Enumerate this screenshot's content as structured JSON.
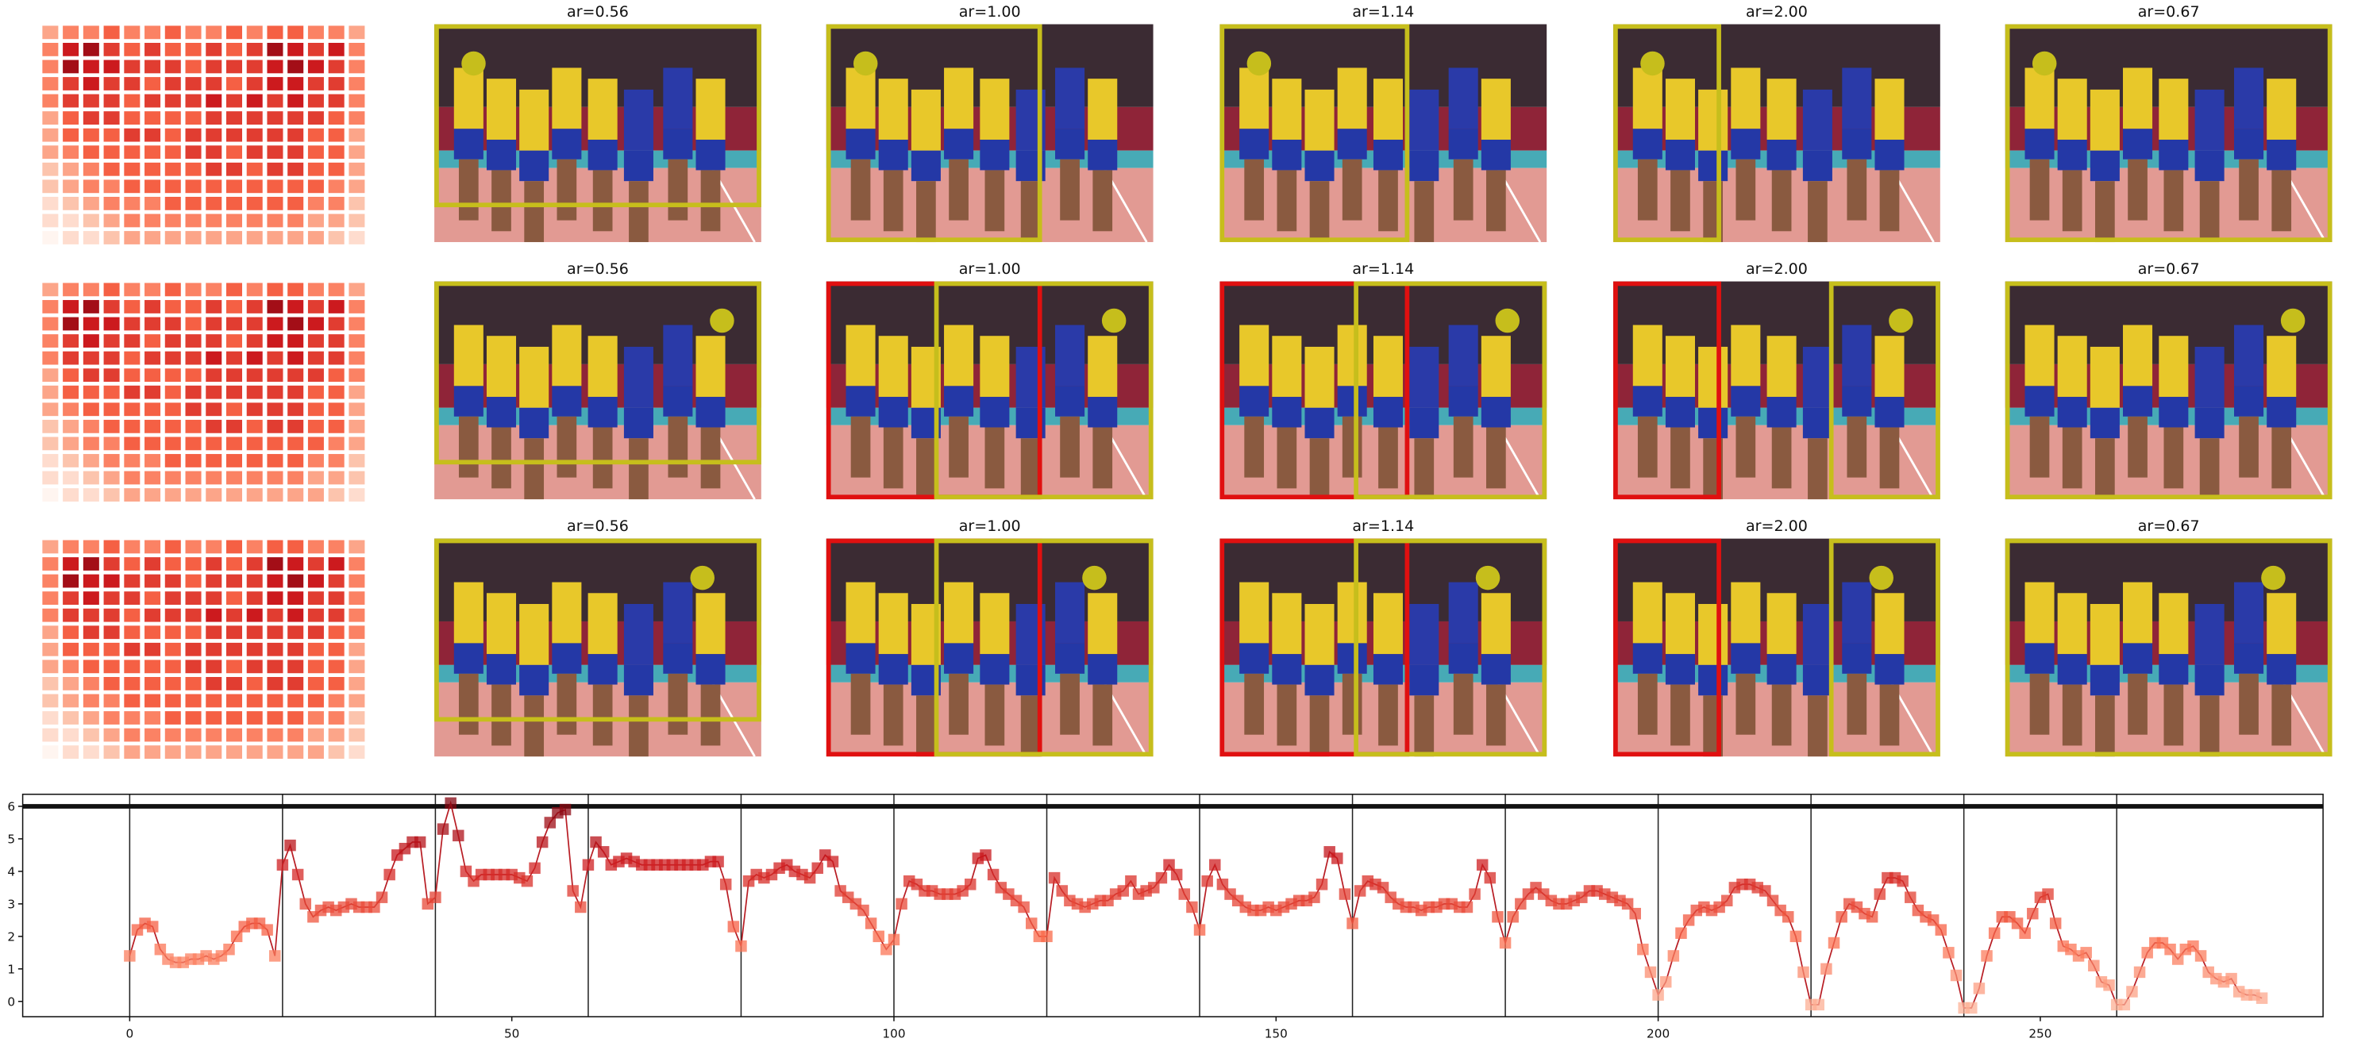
{
  "heatmap": {
    "values": [
      [
        3,
        4,
        4,
        5,
        4,
        4,
        5,
        4,
        4,
        5,
        4,
        5,
        5,
        4,
        4,
        3
      ],
      [
        4,
        7,
        8,
        6,
        5,
        6,
        5,
        5,
        6,
        5,
        6,
        8,
        7,
        6,
        7,
        4
      ],
      [
        4,
        8,
        7,
        7,
        6,
        6,
        6,
        5,
        6,
        6,
        6,
        7,
        8,
        7,
        6,
        4
      ],
      [
        4,
        6,
        7,
        6,
        6,
        5,
        6,
        6,
        6,
        5,
        6,
        7,
        7,
        6,
        6,
        4
      ],
      [
        4,
        6,
        6,
        6,
        5,
        6,
        6,
        6,
        7,
        6,
        7,
        6,
        7,
        6,
        6,
        4
      ],
      [
        3,
        5,
        6,
        6,
        5,
        5,
        5,
        5,
        6,
        6,
        6,
        6,
        6,
        6,
        5,
        4
      ],
      [
        3,
        5,
        5,
        5,
        6,
        6,
        5,
        6,
        6,
        6,
        6,
        6,
        6,
        5,
        5,
        3
      ],
      [
        3,
        4,
        5,
        5,
        5,
        5,
        5,
        6,
        6,
        5,
        6,
        6,
        6,
        5,
        5,
        3
      ],
      [
        2,
        3,
        4,
        5,
        5,
        5,
        5,
        5,
        6,
        6,
        5,
        6,
        6,
        5,
        5,
        3
      ],
      [
        2,
        3,
        4,
        4,
        5,
        5,
        5,
        5,
        5,
        5,
        5,
        5,
        5,
        5,
        4,
        3
      ],
      [
        1,
        2,
        3,
        4,
        4,
        4,
        5,
        5,
        5,
        5,
        5,
        5,
        5,
        4,
        4,
        2
      ],
      [
        1,
        1,
        2,
        3,
        4,
        4,
        4,
        4,
        4,
        4,
        4,
        4,
        4,
        3,
        3,
        2
      ],
      [
        0,
        1,
        1,
        2,
        3,
        3,
        3,
        3,
        3,
        3,
        3,
        3,
        3,
        3,
        2,
        1
      ]
    ]
  },
  "panel_rows": [
    {
      "titles": [
        "ar=0.56",
        "ar=1.00",
        "ar=1.14",
        "ar=2.00",
        "ar=0.67"
      ]
    },
    {
      "titles": [
        "ar=0.56",
        "ar=1.00",
        "ar=1.14",
        "ar=2.00",
        "ar=0.67"
      ]
    },
    {
      "titles": [
        "ar=0.56",
        "ar=1.00",
        "ar=1.14",
        "ar=2.00",
        "ar=0.67"
      ]
    }
  ],
  "chart_data": {
    "type": "line",
    "color": "#b81d24",
    "xlim": [
      -14,
      287
    ],
    "ylim": [
      -0.47,
      6.37
    ],
    "xticks": [
      0,
      50,
      100,
      150,
      200,
      250
    ],
    "yticks": [
      0,
      1,
      2,
      3,
      4,
      5,
      6
    ],
    "vlines": [
      0,
      20,
      40,
      60,
      80,
      100,
      120,
      140,
      160,
      180,
      200,
      220,
      240,
      260
    ],
    "hline": 6,
    "x": [
      0,
      1,
      2,
      3,
      4,
      5,
      6,
      7,
      8,
      9,
      10,
      11,
      12,
      13,
      14,
      15,
      16,
      17,
      18,
      19,
      20,
      21,
      22,
      23,
      24,
      25,
      26,
      27,
      28,
      29,
      30,
      31,
      32,
      33,
      34,
      35,
      36,
      37,
      38,
      39,
      40,
      41,
      42,
      43,
      44,
      45,
      46,
      47,
      48,
      49,
      50,
      51,
      52,
      53,
      54,
      55,
      56,
      57,
      58,
      59,
      60,
      61,
      62,
      63,
      64,
      65,
      66,
      67,
      68,
      69,
      70,
      71,
      72,
      73,
      74,
      75,
      76,
      77,
      78,
      79,
      80,
      81,
      82,
      83,
      84,
      85,
      86,
      87,
      88,
      89,
      90,
      91,
      92,
      93,
      94,
      95,
      96,
      97,
      98,
      99,
      100,
      101,
      102,
      103,
      104,
      105,
      106,
      107,
      108,
      109,
      110,
      111,
      112,
      113,
      114,
      115,
      116,
      117,
      118,
      119,
      120,
      121,
      122,
      123,
      124,
      125,
      126,
      127,
      128,
      129,
      130,
      131,
      132,
      133,
      134,
      135,
      136,
      137,
      138,
      139,
      140,
      141,
      142,
      143,
      144,
      145,
      146,
      147,
      148,
      149,
      150,
      151,
      152,
      153,
      154,
      155,
      156,
      157,
      158,
      159,
      160,
      161,
      162,
      163,
      164,
      165,
      166,
      167,
      168,
      169,
      170,
      171,
      172,
      173,
      174,
      175,
      176,
      177,
      178,
      179,
      180,
      181,
      182,
      183,
      184,
      185,
      186,
      187,
      188,
      189,
      190,
      191,
      192,
      193,
      194,
      195,
      196,
      197,
      198,
      199,
      200,
      201,
      202,
      203,
      204,
      205,
      206,
      207,
      208,
      209,
      210,
      211,
      212,
      213,
      214,
      215,
      216,
      217,
      218,
      219,
      220,
      221,
      222,
      223,
      224,
      225,
      226,
      227,
      228,
      229,
      230,
      231,
      232,
      233,
      234,
      235,
      236,
      237,
      238,
      239,
      240,
      241,
      242,
      243,
      244,
      245,
      246,
      247,
      248,
      249,
      250,
      251,
      252,
      253,
      254,
      255,
      256,
      257,
      258,
      259,
      260,
      261,
      262,
      263,
      264,
      265,
      266,
      267,
      268,
      269,
      270,
      271,
      272,
      273,
      274,
      275,
      276,
      277,
      278,
      279
    ],
    "values": [
      1.4,
      2.2,
      2.4,
      2.3,
      1.6,
      1.3,
      1.2,
      1.2,
      1.3,
      1.3,
      1.4,
      1.3,
      1.4,
      1.6,
      2.0,
      2.3,
      2.4,
      2.4,
      2.2,
      1.4,
      4.2,
      4.8,
      3.9,
      3.0,
      2.6,
      2.8,
      2.9,
      2.8,
      2.9,
      3.0,
      2.9,
      2.9,
      2.9,
      3.2,
      3.9,
      4.5,
      4.7,
      4.9,
      4.9,
      3.0,
      3.2,
      5.3,
      6.1,
      5.1,
      4.0,
      3.7,
      3.9,
      3.9,
      3.9,
      3.9,
      3.9,
      3.8,
      3.7,
      4.1,
      4.9,
      5.5,
      5.8,
      5.9,
      3.4,
      2.9,
      4.2,
      4.9,
      4.6,
      4.2,
      4.3,
      4.4,
      4.3,
      4.2,
      4.2,
      4.2,
      4.2,
      4.2,
      4.2,
      4.2,
      4.2,
      4.2,
      4.3,
      4.3,
      3.6,
      2.3,
      1.7,
      3.7,
      3.9,
      3.8,
      3.9,
      4.1,
      4.2,
      4.0,
      3.9,
      3.8,
      4.1,
      4.5,
      4.3,
      3.4,
      3.2,
      3.0,
      2.8,
      2.4,
      2.0,
      1.6,
      1.9,
      3.0,
      3.7,
      3.6,
      3.4,
      3.4,
      3.3,
      3.3,
      3.3,
      3.4,
      3.6,
      4.4,
      4.5,
      3.9,
      3.5,
      3.3,
      3.1,
      2.9,
      2.4,
      2.0,
      2.0,
      3.8,
      3.4,
      3.1,
      3.0,
      2.9,
      3.0,
      3.1,
      3.1,
      3.3,
      3.4,
      3.7,
      3.3,
      3.4,
      3.5,
      3.8,
      4.2,
      3.9,
      3.3,
      2.9,
      2.2,
      3.7,
      4.2,
      3.6,
      3.3,
      3.1,
      2.9,
      2.8,
      2.8,
      2.9,
      2.8,
      2.9,
      3.0,
      3.1,
      3.1,
      3.2,
      3.6,
      4.6,
      4.4,
      3.3,
      2.4,
      3.4,
      3.7,
      3.6,
      3.5,
      3.2,
      3.0,
      2.9,
      2.9,
      2.8,
      2.9,
      2.9,
      3.0,
      3.0,
      2.9,
      2.9,
      3.3,
      4.2,
      3.8,
      2.6,
      1.8,
      2.6,
      3.0,
      3.3,
      3.5,
      3.3,
      3.1,
      3.0,
      3.0,
      3.1,
      3.2,
      3.4,
      3.4,
      3.3,
      3.2,
      3.1,
      3.0,
      2.7,
      1.6,
      0.9,
      0.2,
      0.6,
      1.4,
      2.1,
      2.5,
      2.8,
      2.9,
      2.8,
      2.9,
      3.1,
      3.5,
      3.6,
      3.6,
      3.5,
      3.4,
      3.1,
      2.8,
      2.6,
      2.0,
      0.9,
      -0.1,
      -0.1,
      1.0,
      1.8,
      2.6,
      3.0,
      2.9,
      2.7,
      2.6,
      3.3,
      3.8,
      3.8,
      3.7,
      3.2,
      2.8,
      2.6,
      2.5,
      2.2,
      1.5,
      0.8,
      -0.2,
      -0.2,
      0.4,
      1.4,
      2.1,
      2.6,
      2.6,
      2.4,
      2.1,
      2.7,
      3.2,
      3.3,
      2.4,
      1.7,
      1.6,
      1.4,
      1.5,
      1.1,
      0.6,
      0.5,
      -0.1,
      -0.1,
      0.3,
      0.9,
      1.5,
      1.8,
      1.8,
      1.6,
      1.3,
      1.6,
      1.7,
      1.4,
      0.9,
      0.7,
      0.6,
      0.7,
      0.3,
      0.2,
      0.2,
      0.1
    ]
  }
}
